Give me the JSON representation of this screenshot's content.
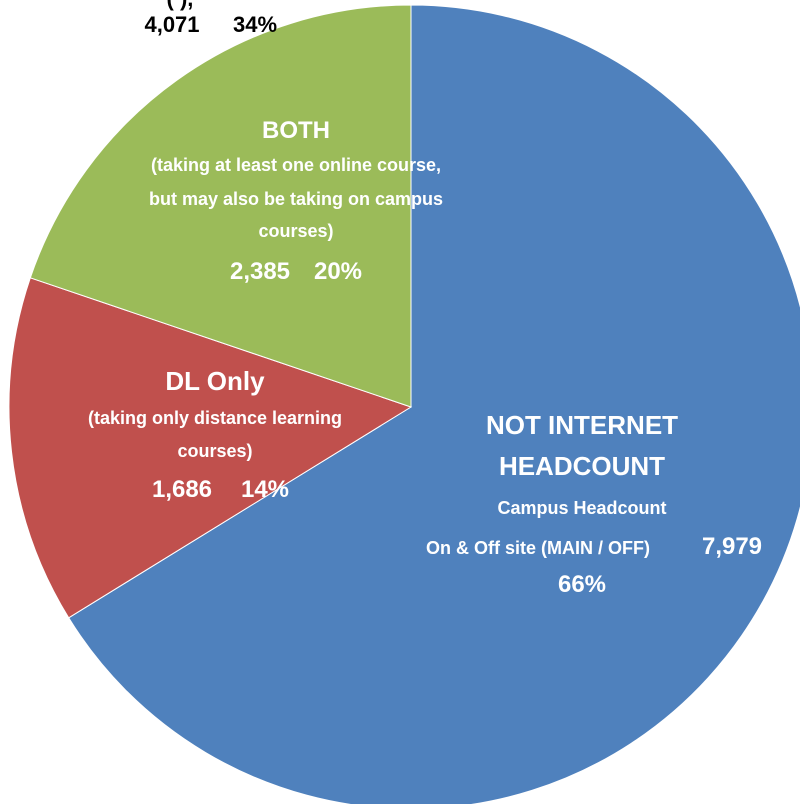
{
  "chart_data": {
    "type": "pie",
    "slices": [
      {
        "id": "not-internet",
        "value": 7979,
        "percent": "66%",
        "value_label": "7,979",
        "color": "#4F81BD",
        "title_lines": [
          "NOT INTERNET",
          "HEADCOUNT"
        ],
        "detail_lines": [
          "Campus Headcount",
          "On & Off site (MAIN / OFF)"
        ]
      },
      {
        "id": "dl-only",
        "value": 1686,
        "percent": "14%",
        "value_label": "1,686",
        "color": "#C0504D",
        "title_lines": [
          "DL Only"
        ],
        "detail_lines": [
          "(taking only distance learning",
          "courses)"
        ]
      },
      {
        "id": "both",
        "value": 2385,
        "percent": "20%",
        "value_label": "2,385",
        "color": "#9BBB59",
        "title_lines": [
          "BOTH"
        ],
        "detail_lines": [
          "(taking at least one online course,",
          "but may also be taking on campus",
          "courses)"
        ]
      }
    ],
    "group_total": {
      "value_label": "4,071",
      "percent": "34%",
      "partial_label": "(                 ),"
    }
  }
}
